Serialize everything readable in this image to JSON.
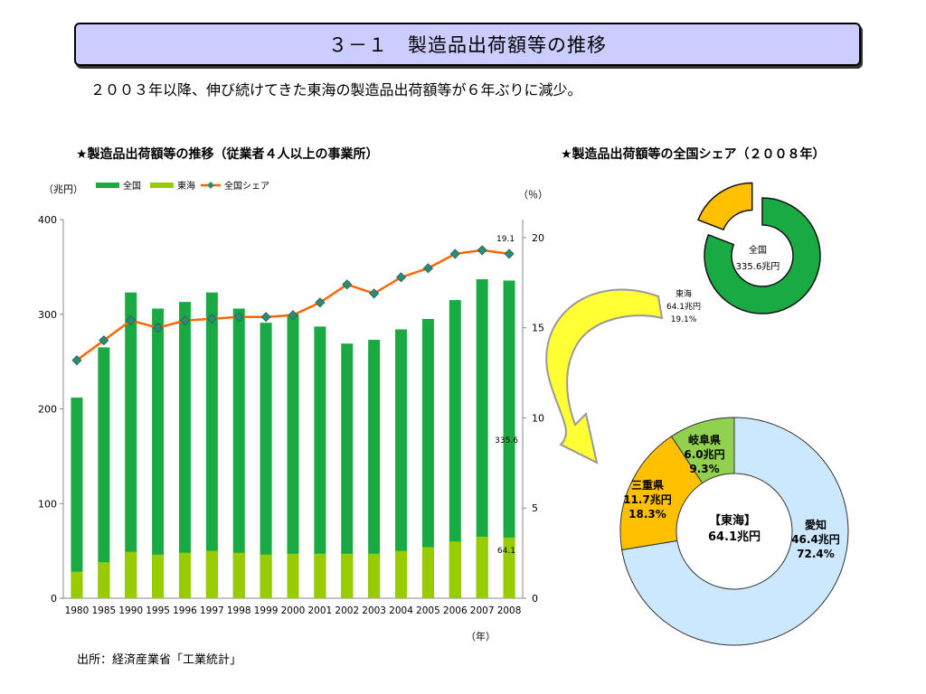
{
  "title": "３－１　製造品出荷額等の推移",
  "summary": "２００３年以降、伸び続けてきた東海の製造品出荷額等が６年ぶりに減少。",
  "source": "出所：経済産業省「工業統計」",
  "colors": {
    "national": "#1aaa44",
    "tokai": "#99cc00",
    "share_line": "#ff6600",
    "share_marker": "#2e8b78",
    "title_bg": "#ccccff"
  },
  "chart_data": [
    {
      "type": "bar",
      "title": "★製造品出荷額等の推移（従業者４人以上の事業所）",
      "ylabel_left": "（兆円）",
      "ylabel_right": "（％）",
      "xlabel": "（年）",
      "ylim_left": [
        0,
        400
      ],
      "ylim_right": [
        0,
        21
      ],
      "yticks_left": [
        "0",
        "100",
        "200",
        "300",
        "400"
      ],
      "yticks_right": [
        "0",
        "5",
        "10",
        "15",
        "20"
      ],
      "categories": [
        "1980",
        "1985",
        "1990",
        "1995",
        "1996",
        "1997",
        "1998",
        "1999",
        "2000",
        "2001",
        "2002",
        "2003",
        "2004",
        "2005",
        "2006",
        "2007",
        "2008"
      ],
      "series": [
        {
          "name": "全国",
          "type": "bar",
          "axis": "left",
          "values": [
            212,
            265,
            323,
            306,
            313,
            323,
            306,
            291,
            300,
            287,
            269,
            273,
            284,
            295,
            315,
            337,
            335.6
          ]
        },
        {
          "name": "東海",
          "type": "bar",
          "axis": "left",
          "values": [
            28,
            38,
            49,
            46,
            48,
            50,
            48,
            46,
            47,
            47,
            47,
            47,
            50,
            54,
            60,
            65,
            64.1
          ]
        },
        {
          "name": "全国シェア",
          "type": "line",
          "axis": "right",
          "values": [
            13.2,
            14.3,
            15.4,
            15.0,
            15.4,
            15.5,
            15.6,
            15.6,
            15.7,
            16.4,
            17.4,
            16.9,
            17.8,
            18.3,
            19.1,
            19.3,
            19.1
          ]
        }
      ],
      "data_labels": {
        "national_last": "335.6",
        "tokai_last": "64.1",
        "share_last": "19.1"
      },
      "grid": false,
      "legend": "top"
    },
    {
      "type": "pie",
      "title": "★製造品出荷額等の全国シェア（２００８年）",
      "slices": [
        {
          "label": "全国",
          "value_text": "335.6兆円",
          "value": 80.9
        },
        {
          "label": "東海",
          "value_text": "64.1兆円",
          "pct_text": "19.1%",
          "value": 19.1
        }
      ]
    },
    {
      "type": "pie",
      "center_title": "【東海】",
      "center_value": "64.1兆円",
      "slices": [
        {
          "label": "愛知",
          "value_text": "46.4兆円",
          "pct_text": "72.4%",
          "value": 72.4,
          "color": "#cce8ff"
        },
        {
          "label": "三重県",
          "value_text": "11.7兆円",
          "pct_text": "18.3%",
          "value": 18.3,
          "color": "#ffc000"
        },
        {
          "label": "岐阜県",
          "value_text": "6.0兆円",
          "pct_text": "9.3%",
          "value": 9.3,
          "color": "#92d050"
        }
      ]
    }
  ]
}
